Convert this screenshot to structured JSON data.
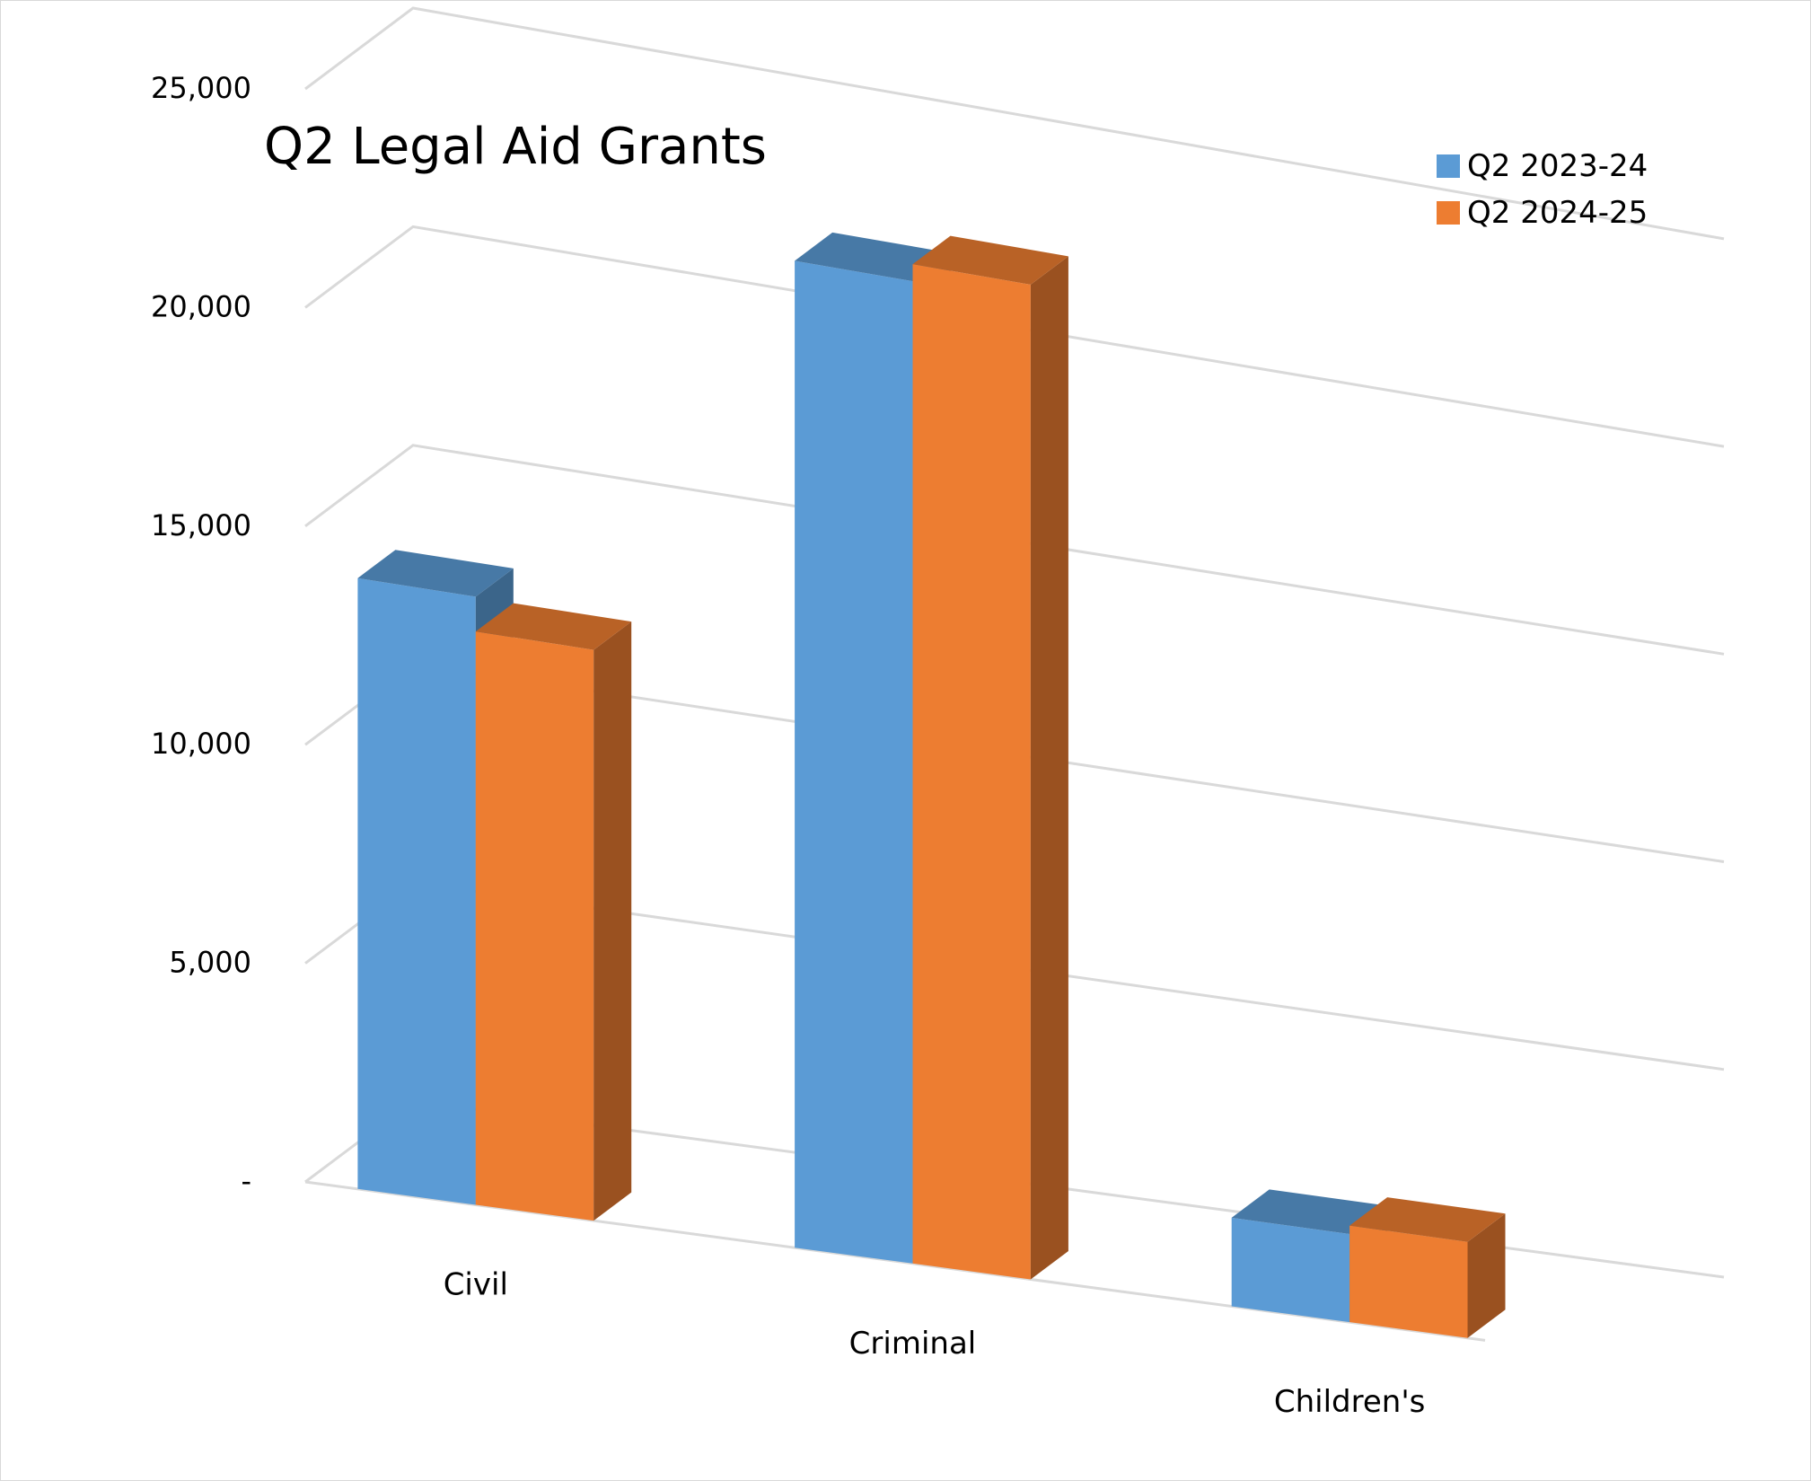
{
  "chart_data": {
    "type": "bar",
    "title": "Q2 Legal Aid Grants",
    "categories": [
      "Civil",
      "Criminal",
      "Children's"
    ],
    "series": [
      {
        "name": "Q2 2023-24",
        "values": [
          14000,
          23000,
          2100
        ],
        "color": "#5B9BD5"
      },
      {
        "name": "Q2 2024-25",
        "values": [
          13200,
          23400,
          2300
        ],
        "color": "#ED7D31"
      }
    ],
    "y_ticks": [
      "-",
      "5,000",
      "10,000",
      "15,000",
      "20,000",
      "25,000"
    ],
    "ylim": [
      0,
      25000
    ],
    "grid": true,
    "legend_position": "top-right",
    "style": "3d-clustered-column"
  }
}
